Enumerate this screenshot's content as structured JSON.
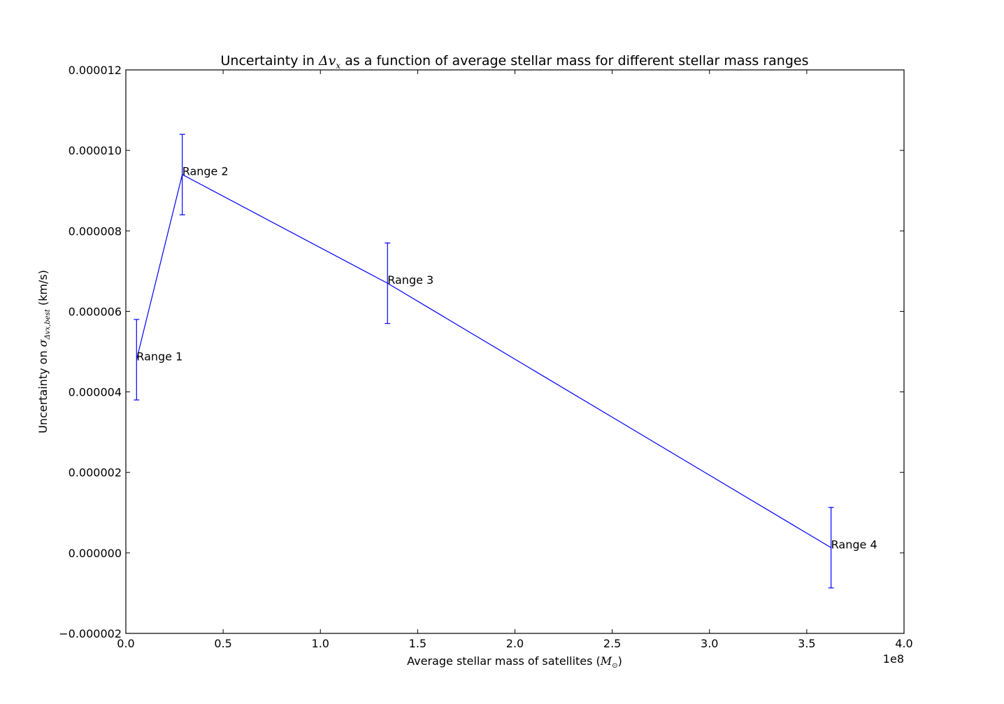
{
  "chart_data": {
    "type": "line",
    "title": {
      "prefix": "Uncertainty in ",
      "math_main": "Δv",
      "math_sub": "x",
      "suffix": " as a function of average stellar mass for different stellar mass ranges"
    },
    "xlabel": {
      "prefix": "Average stellar mass of satellites (",
      "math_main": "M",
      "math_sub": "⊙",
      "suffix": ")"
    },
    "ylabel": {
      "prefix": "Uncertainty on ",
      "math_main": "σ",
      "math_sub": "Δvx,best",
      "suffix": " (km/s)"
    },
    "x_offset_label": "1e8",
    "xlim": [
      0.0,
      4.0
    ],
    "ylim": [
      -2e-06,
      1.2e-05
    ],
    "xticks": [
      0.0,
      0.5,
      1.0,
      1.5,
      2.0,
      2.5,
      3.0,
      3.5,
      4.0
    ],
    "xtick_labels": [
      "0.0",
      "0.5",
      "1.0",
      "1.5",
      "2.0",
      "2.5",
      "3.0",
      "3.5",
      "4.0"
    ],
    "yticks": [
      -2e-06,
      0.0,
      2e-06,
      4e-06,
      6e-06,
      8e-06,
      1e-05,
      1.2e-05
    ],
    "ytick_labels": [
      "−0.000002",
      "0.000000",
      "0.000002",
      "0.000004",
      "0.000006",
      "0.000008",
      "0.000010",
      "0.000012"
    ],
    "grid": false,
    "line_color": "#0000ff",
    "points": [
      {
        "label": "Range 1",
        "x": 0.055,
        "y": 4.8e-06,
        "yerr": 1e-06
      },
      {
        "label": "Range 2",
        "x": 0.29,
        "y": 9.4e-06,
        "yerr": 1e-06
      },
      {
        "label": "Range 3",
        "x": 1.345,
        "y": 6.7e-06,
        "yerr": 1e-06
      },
      {
        "label": "Range 4",
        "x": 3.625,
        "y": 1.3e-07,
        "yerr": 1e-06
      }
    ]
  }
}
